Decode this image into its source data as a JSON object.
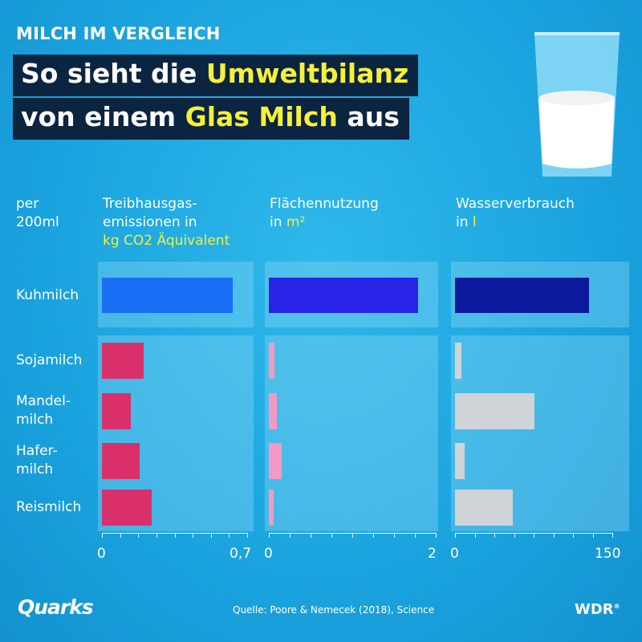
{
  "kicker": "MILCH IM VERGLEICH",
  "headline": {
    "line1_pre": "So sieht die ",
    "line1_highlight": "Umweltbilanz",
    "line2_pre": "von einem ",
    "line2_highlight": "Glas Milch",
    "line2_post": " aus"
  },
  "unit_label": [
    "per",
    "200ml"
  ],
  "chart_data": {
    "type": "bar",
    "orientation": "horizontal",
    "categories": [
      [
        "Kuhmilch"
      ],
      [
        "Sojamilch"
      ],
      [
        "Mandel-",
        "milch"
      ],
      [
        "Hafer-",
        "milch"
      ],
      [
        "Reismilch"
      ]
    ],
    "panels": [
      {
        "title_lines": [
          "Treibhausgas-",
          "emissionen in"
        ],
        "title_highlight": "kg CO2 Äquivalent",
        "xlim": [
          0,
          0.7
        ],
        "tick_min_label": "0",
        "tick_max_label": "0,7",
        "values": [
          0.63,
          0.2,
          0.14,
          0.18,
          0.24
        ],
        "colors": [
          "#1a6ef5",
          "#d9306b",
          "#d9306b",
          "#d9306b",
          "#d9306b"
        ]
      },
      {
        "title_lines": [
          "Flächennutzung",
          "in "
        ],
        "title_highlight": "m²",
        "xlim": [
          0,
          2
        ],
        "tick_min_label": "0",
        "tick_max_label": "2",
        "values": [
          1.79,
          0.07,
          0.1,
          0.15,
          0.06
        ],
        "colors": [
          "#2a24e6",
          "#f29ac4",
          "#f29ac4",
          "#f29ac4",
          "#f29ac4"
        ]
      },
      {
        "title_lines": [
          "Wasserverbrauch",
          "in "
        ],
        "title_highlight": "l",
        "xlim": [
          0,
          150
        ],
        "tick_min_label": "0",
        "tick_max_label": "150",
        "values": [
          128,
          6,
          76,
          9,
          55
        ],
        "colors": [
          "#0b1a9c",
          "#cfd4d8",
          "#cfd4d8",
          "#cfd4d8",
          "#cfd4d8"
        ]
      }
    ]
  },
  "footer": {
    "logo": "Quarks",
    "source": "Quelle: Poore & Nemecek (2018), Science",
    "brand": "WDR",
    "brand_mark": "®"
  }
}
